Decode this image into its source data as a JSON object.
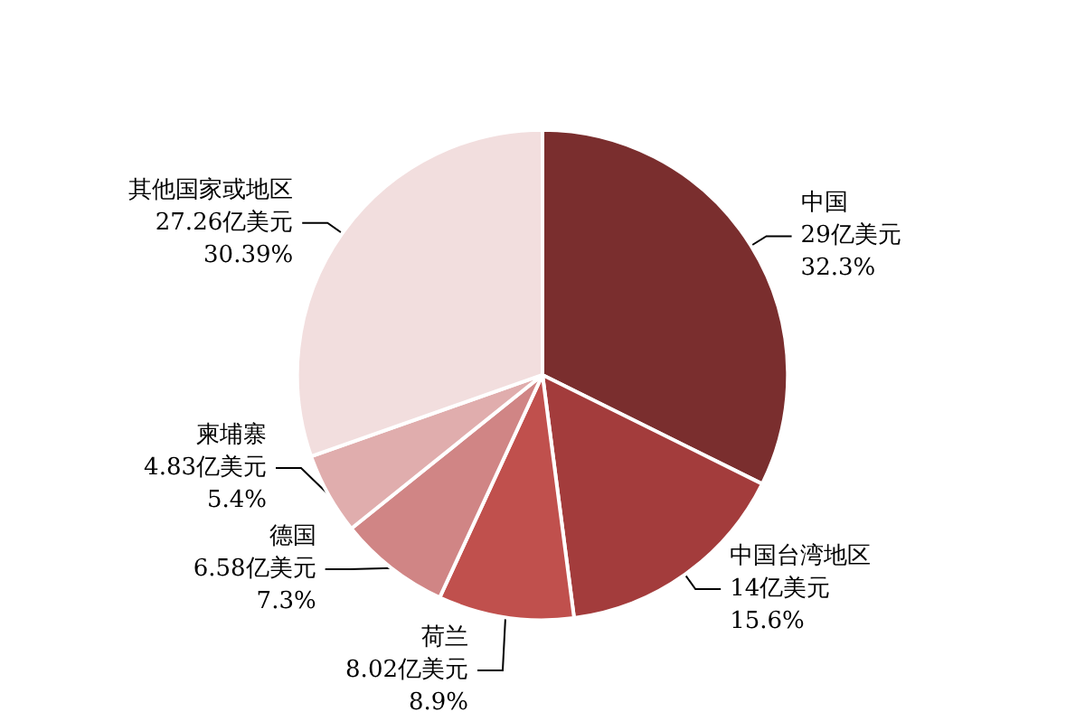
{
  "chart_data": {
    "type": "pie",
    "categories": [
      "中国",
      "中国台湾地区",
      "荷兰",
      "德国",
      "柬埔寨",
      "其他国家或地区"
    ],
    "values": [
      29,
      14,
      8.02,
      6.58,
      4.83,
      27.26
    ],
    "value_labels": [
      "29亿美元 32.3%",
      "14亿美元 15.6%",
      "8.02亿美元 8.9%",
      "6.58亿美元 7.3%",
      "4.83亿美元 5.4%",
      "27.26亿美元 30.39%"
    ],
    "colors": [
      "#7a2e2e",
      "#a33c3c",
      "#c0504d",
      "#d08585",
      "#e0adad",
      "#f2dede"
    ]
  }
}
